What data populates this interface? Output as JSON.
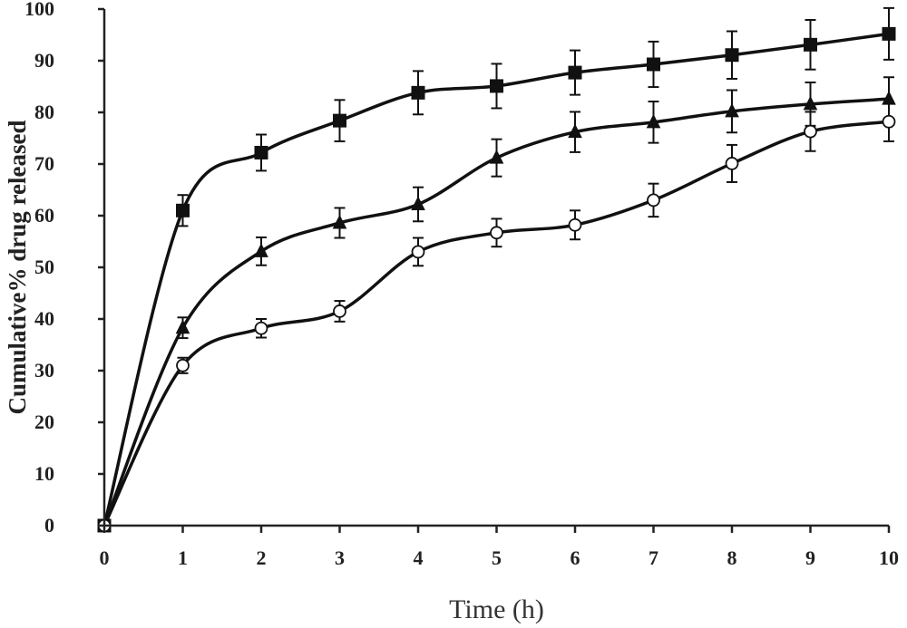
{
  "chart_data": {
    "type": "line",
    "title": "",
    "xlabel": "Time (h)",
    "ylabel": "Cumulative% drug released",
    "xlim": [
      0,
      10
    ],
    "ylim": [
      0,
      100
    ],
    "x_ticks": [
      "0",
      "1",
      "2",
      "3",
      "4",
      "5",
      "6",
      "7",
      "8",
      "9",
      "10"
    ],
    "y_ticks": [
      "0",
      "10",
      "20",
      "30",
      "40",
      "50",
      "60",
      "70",
      "80",
      "90",
      "100"
    ],
    "grid": false,
    "legend": "none",
    "line_style": "smooth",
    "series": [
      {
        "marker": "square",
        "marker_fill": "#111111",
        "x": [
          0,
          1,
          2,
          3,
          4,
          5,
          6,
          7,
          8,
          9,
          10
        ],
        "values": [
          0,
          61,
          72.2,
          78.4,
          83.8,
          85.1,
          87.7,
          89.3,
          91.1,
          93.1,
          95.2
        ],
        "error": [
          0,
          3,
          3.5,
          4,
          4.2,
          4.3,
          4.3,
          4.4,
          4.6,
          4.8,
          5
        ]
      },
      {
        "marker": "triangle",
        "marker_fill": "#111111",
        "x": [
          0,
          1,
          2,
          3,
          4,
          5,
          6,
          7,
          8,
          9,
          10
        ],
        "values": [
          0,
          38.3,
          53.1,
          58.6,
          62.2,
          71.2,
          76.2,
          78.1,
          80.2,
          81.6,
          82.6
        ],
        "error": [
          0,
          2,
          2.7,
          2.9,
          3.3,
          3.6,
          3.9,
          4,
          4.1,
          4.2,
          4.2
        ]
      },
      {
        "marker": "circle",
        "marker_fill": "#ffffff",
        "x": [
          0,
          1,
          2,
          3,
          4,
          5,
          6,
          7,
          8,
          9,
          10
        ],
        "values": [
          0,
          31,
          38.2,
          41.5,
          53,
          56.7,
          58.2,
          63,
          70.1,
          76.3,
          78.2
        ],
        "error": [
          0,
          1.5,
          1.8,
          2,
          2.7,
          2.7,
          2.8,
          3.2,
          3.6,
          3.8,
          3.8
        ]
      }
    ]
  }
}
